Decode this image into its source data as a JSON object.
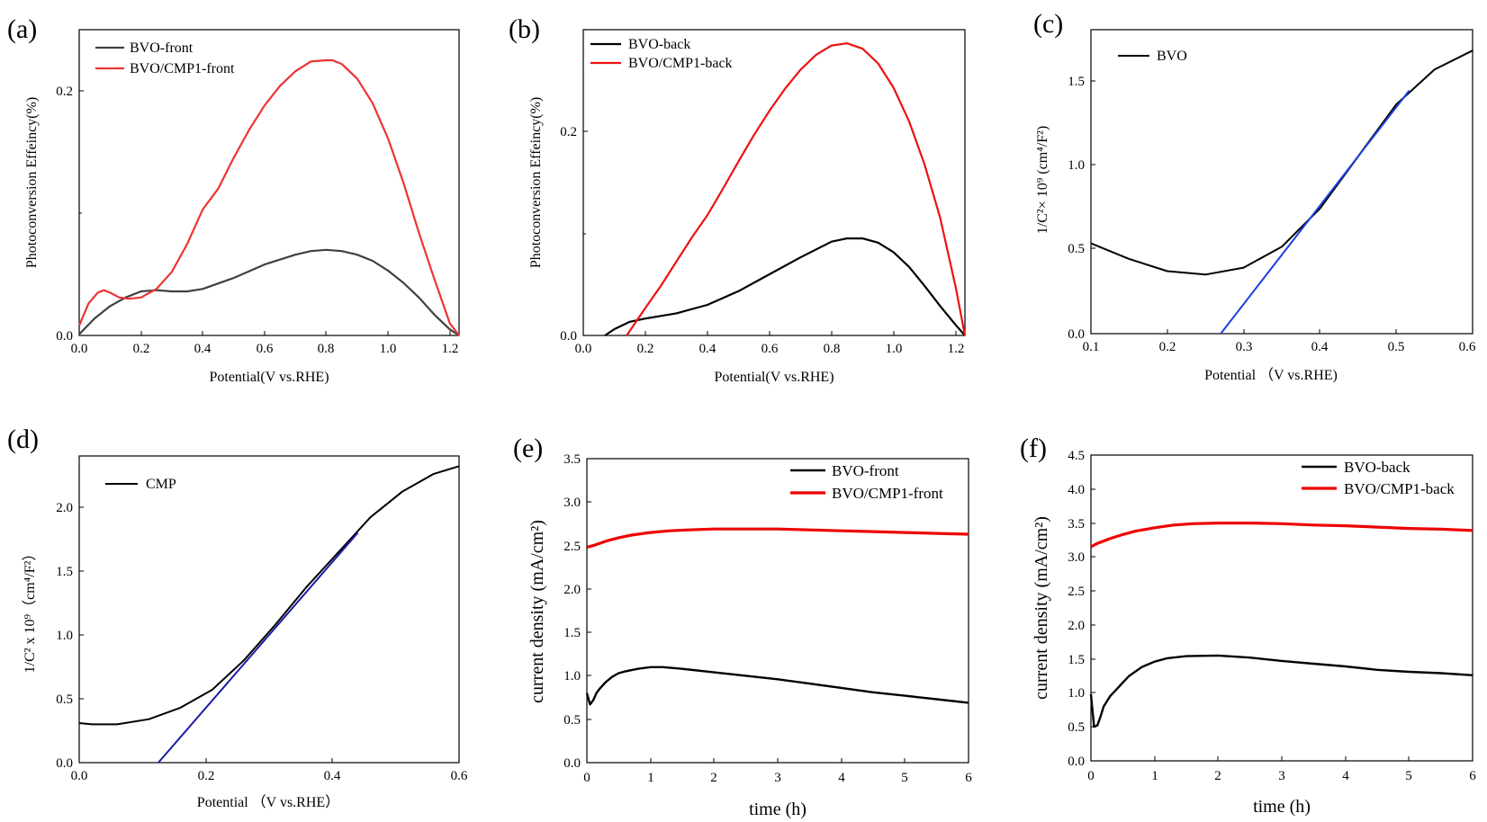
{
  "figure": {
    "chart_data": [
      {
        "panel": "(a)",
        "type": "line",
        "xlabel": "Potential(V vs.RHE)",
        "ylabel": "Photoconversion Effeincy(%)",
        "xlim": [
          0,
          1.23
        ],
        "ylim": [
          0,
          0.25
        ],
        "xticks": [
          0.0,
          0.2,
          0.4,
          0.6,
          0.8,
          1.0,
          1.2
        ],
        "xtick_labels": [
          "0.0",
          "0.2",
          "0.4",
          "0.6",
          "0.8",
          "1.0",
          "1.2"
        ],
        "yticks": [
          0.0,
          0.2
        ],
        "ytick_labels": [
          "0.0",
          "0.2"
        ],
        "legend_position": "top-left",
        "series": [
          {
            "name": "BVO-front",
            "color": "#404040",
            "x": [
              0.0,
              0.05,
              0.1,
              0.15,
              0.2,
              0.25,
              0.3,
              0.35,
              0.4,
              0.5,
              0.6,
              0.7,
              0.75,
              0.8,
              0.85,
              0.9,
              0.95,
              1.0,
              1.05,
              1.1,
              1.15,
              1.2,
              1.23
            ],
            "y": [
              0.001,
              0.014,
              0.024,
              0.031,
              0.036,
              0.037,
              0.036,
              0.036,
              0.038,
              0.047,
              0.058,
              0.066,
              0.069,
              0.07,
              0.069,
              0.066,
              0.061,
              0.053,
              0.043,
              0.031,
              0.017,
              0.005,
              0.0
            ]
          },
          {
            "name": "BVO/CMP1-front",
            "color": "#ee3333",
            "x": [
              0.0,
              0.03,
              0.06,
              0.08,
              0.1,
              0.13,
              0.16,
              0.2,
              0.25,
              0.3,
              0.35,
              0.4,
              0.45,
              0.5,
              0.55,
              0.6,
              0.65,
              0.7,
              0.75,
              0.8,
              0.82,
              0.85,
              0.9,
              0.95,
              1.0,
              1.05,
              1.1,
              1.15,
              1.2,
              1.23
            ],
            "y": [
              0.008,
              0.026,
              0.035,
              0.037,
              0.035,
              0.031,
              0.03,
              0.031,
              0.038,
              0.052,
              0.075,
              0.103,
              0.12,
              0.145,
              0.168,
              0.188,
              0.204,
              0.216,
              0.224,
              0.225,
              0.225,
              0.222,
              0.21,
              0.19,
              0.161,
              0.125,
              0.084,
              0.046,
              0.01,
              0.0
            ]
          }
        ]
      },
      {
        "panel": "(b)",
        "type": "line",
        "xlabel": "Potential(V vs.RHE)",
        "ylabel": "Photoconversion Effeincy(%)",
        "xlim": [
          0,
          1.23
        ],
        "ylim": [
          0,
          0.29
        ],
        "xticks": [
          0.0,
          0.2,
          0.4,
          0.6,
          0.8,
          1.0,
          1.2
        ],
        "xtick_labels": [
          "0.0",
          "0.2",
          "0.4",
          "0.6",
          "0.8",
          "1.0",
          "1.2"
        ],
        "yticks": [
          0.0,
          0.2
        ],
        "ytick_labels": [
          "0.0",
          "0.2"
        ],
        "legend_position": "top-left",
        "series": [
          {
            "name": "BVO-back",
            "color": "#000000",
            "x": [
              0.07,
              0.1,
              0.15,
              0.2,
              0.3,
              0.4,
              0.5,
              0.6,
              0.7,
              0.8,
              0.85,
              0.9,
              0.95,
              1.0,
              1.05,
              1.1,
              1.15,
              1.2,
              1.23
            ],
            "y": [
              0.0,
              0.006,
              0.013,
              0.016,
              0.021,
              0.029,
              0.042,
              0.058,
              0.074,
              0.089,
              0.092,
              0.092,
              0.088,
              0.079,
              0.065,
              0.047,
              0.028,
              0.01,
              0.0
            ]
          },
          {
            "name": "BVO/CMP1-back",
            "color": "#ee1111",
            "x": [
              0.14,
              0.2,
              0.25,
              0.3,
              0.35,
              0.4,
              0.45,
              0.5,
              0.55,
              0.6,
              0.65,
              0.7,
              0.75,
              0.8,
              0.85,
              0.9,
              0.95,
              1.0,
              1.05,
              1.1,
              1.15,
              1.2,
              1.23
            ],
            "y": [
              0.0,
              0.026,
              0.047,
              0.07,
              0.093,
              0.114,
              0.139,
              0.165,
              0.19,
              0.213,
              0.234,
              0.252,
              0.266,
              0.275,
              0.277,
              0.272,
              0.258,
              0.235,
              0.203,
              0.162,
              0.112,
              0.046,
              0.0
            ]
          }
        ]
      },
      {
        "panel": "(c)",
        "type": "line",
        "xlabel": "Potential （V vs.RHE)",
        "ylabel": "1/C²× 10⁹ (cm⁴/F²)",
        "xlim": [
          0.1,
          0.6
        ],
        "ylim": [
          0,
          1.75
        ],
        "xticks": [
          0.1,
          0.2,
          0.3,
          0.4,
          0.5,
          0.6
        ],
        "xtick_labels": [
          "0.1",
          "0.2",
          "0.3",
          "0.4",
          "0.5",
          "0.6"
        ],
        "yticks": [
          0.0,
          0.5,
          1.0,
          1.5
        ],
        "ytick_labels": [
          "0.0",
          "0.5",
          "1.0",
          "1.5"
        ],
        "legend_position": "top-left",
        "series": [
          {
            "name": "BVO",
            "color": "#000000",
            "x": [
              0.1,
              0.15,
              0.2,
              0.25,
              0.3,
              0.35,
              0.4,
              0.45,
              0.5,
              0.55,
              0.6
            ],
            "y": [
              0.52,
              0.43,
              0.36,
              0.34,
              0.38,
              0.5,
              0.72,
              1.02,
              1.32,
              1.52,
              1.63
            ]
          },
          {
            "name": "linear fit",
            "color": "#1f3fe0",
            "x": [
              0.27,
              0.517
            ],
            "y": [
              0.0,
              1.4
            ]
          }
        ]
      },
      {
        "panel": "(d)",
        "type": "line",
        "xlabel": "Potential （V vs.RHE）",
        "ylabel": "1/C² x 10⁹（cm⁴/F²）",
        "xlim": [
          0,
          0.6
        ],
        "ylim": [
          0,
          2.4
        ],
        "xticks": [
          0.0,
          0.2,
          0.4,
          0.6
        ],
        "xtick_labels": [
          "0.0",
          "0.2",
          "0.4",
          "0.6"
        ],
        "yticks": [
          0.0,
          0.5,
          1.0,
          1.5,
          2.0
        ],
        "ytick_labels": [
          "0.0",
          "0.5",
          "1.0",
          "1.5",
          "2.0"
        ],
        "legend_position": "top-left",
        "series": [
          {
            "name": "CMP",
            "color": "#000000",
            "x": [
              0.0,
              0.02,
              0.06,
              0.11,
              0.16,
              0.21,
              0.26,
              0.31,
              0.36,
              0.41,
              0.46,
              0.51,
              0.56,
              0.6
            ],
            "y": [
              0.31,
              0.3,
              0.3,
              0.34,
              0.43,
              0.57,
              0.8,
              1.08,
              1.38,
              1.65,
              1.92,
              2.12,
              2.26,
              2.32
            ]
          },
          {
            "name": "linear fit",
            "color": "#1a1aa8",
            "x": [
              0.125,
              0.44
            ],
            "y": [
              0.0,
              1.8
            ]
          }
        ]
      },
      {
        "panel": "(e)",
        "type": "line",
        "xlabel": "time (h)",
        "ylabel": "current density (mA/cm²)",
        "xlim": [
          0,
          6
        ],
        "ylim": [
          0,
          3.5
        ],
        "xticks": [
          0,
          1,
          2,
          3,
          4,
          5,
          6
        ],
        "xtick_labels": [
          "0",
          "1",
          "2",
          "3",
          "4",
          "5",
          "6"
        ],
        "yticks": [
          0.0,
          0.5,
          1.0,
          1.5,
          2.0,
          2.5,
          3.0,
          3.5
        ],
        "ytick_labels": [
          "0.0",
          "0.5",
          "1.0",
          "1.5",
          "2.0",
          "2.5",
          "3.0",
          "3.5"
        ],
        "legend_position": "top-right",
        "series": [
          {
            "name": "BVO-front",
            "color": "#000000",
            "x": [
              0.0,
              0.05,
              0.1,
              0.15,
              0.2,
              0.3,
              0.4,
              0.5,
              0.6,
              0.8,
              1.0,
              1.2,
              1.5,
              2.0,
              2.5,
              3.0,
              3.5,
              4.0,
              4.5,
              5.0,
              5.5,
              6.0
            ],
            "y": [
              0.8,
              0.67,
              0.72,
              0.8,
              0.85,
              0.93,
              0.99,
              1.03,
              1.05,
              1.08,
              1.1,
              1.1,
              1.08,
              1.04,
              1.0,
              0.96,
              0.91,
              0.86,
              0.81,
              0.77,
              0.73,
              0.69
            ]
          },
          {
            "name": "BVO/CMP1-front",
            "color": "#ee0000",
            "x": [
              0.0,
              0.1,
              0.3,
              0.5,
              0.7,
              1.0,
              1.3,
              1.6,
              2.0,
              2.5,
              3.0,
              3.5,
              4.0,
              4.5,
              5.0,
              5.5,
              6.0
            ],
            "y": [
              2.48,
              2.5,
              2.55,
              2.59,
              2.62,
              2.65,
              2.67,
              2.68,
              2.69,
              2.69,
              2.69,
              2.68,
              2.67,
              2.66,
              2.65,
              2.64,
              2.63
            ]
          }
        ]
      },
      {
        "panel": "(f)",
        "type": "line",
        "xlabel": "time (h)",
        "ylabel": "current density (mA/cm²)",
        "xlim": [
          0,
          6
        ],
        "ylim": [
          0,
          4.5
        ],
        "xticks": [
          0,
          1,
          2,
          3,
          4,
          5,
          6
        ],
        "xtick_labels": [
          "0",
          "1",
          "2",
          "3",
          "4",
          "5",
          "6"
        ],
        "yticks": [
          0.0,
          0.5,
          1.0,
          1.5,
          2.0,
          2.5,
          3.0,
          3.5,
          4.0,
          4.5
        ],
        "ytick_labels": [
          "0.0",
          "0.5",
          "1.0",
          "1.5",
          "2.0",
          "2.5",
          "3.0",
          "3.5",
          "4.0",
          "4.5"
        ],
        "legend_position": "top-right",
        "series": [
          {
            "name": "BVO-back",
            "color": "#000000",
            "x": [
              0.0,
              0.05,
              0.1,
              0.15,
              0.2,
              0.3,
              0.4,
              0.5,
              0.6,
              0.8,
              1.0,
              1.2,
              1.5,
              2.0,
              2.5,
              3.0,
              3.5,
              4.0,
              4.5,
              5.0,
              5.5,
              6.0
            ],
            "y": [
              0.98,
              0.5,
              0.52,
              0.65,
              0.8,
              0.95,
              1.05,
              1.15,
              1.25,
              1.38,
              1.46,
              1.51,
              1.54,
              1.55,
              1.52,
              1.47,
              1.43,
              1.39,
              1.34,
              1.31,
              1.29,
              1.26
            ]
          },
          {
            "name": "BVO/CMP1-back",
            "color": "#ee0000",
            "x": [
              0.0,
              0.1,
              0.3,
              0.5,
              0.7,
              1.0,
              1.3,
              1.6,
              2.0,
              2.5,
              3.0,
              3.5,
              4.0,
              4.5,
              5.0,
              5.5,
              6.0
            ],
            "y": [
              3.15,
              3.2,
              3.27,
              3.33,
              3.38,
              3.43,
              3.47,
              3.49,
              3.5,
              3.5,
              3.49,
              3.47,
              3.46,
              3.44,
              3.42,
              3.41,
              3.39
            ]
          }
        ]
      }
    ]
  }
}
